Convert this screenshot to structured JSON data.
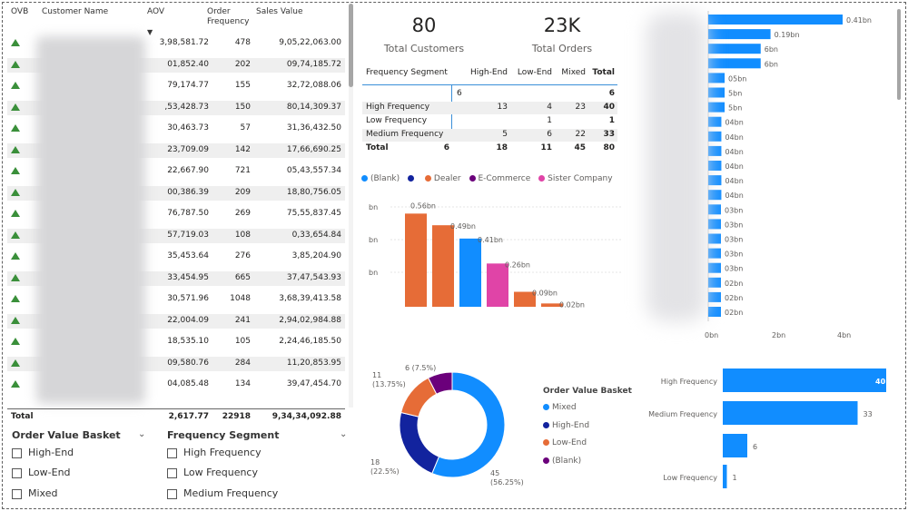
{
  "table": {
    "headers": {
      "ovb": "OVB",
      "customer": "Customer Name",
      "aov": "AOV",
      "freq_line1": "Order",
      "freq_line2": "Frequency",
      "sales": "Sales Value"
    },
    "rows": [
      {
        "aov": "3,98,581.72",
        "freq": "478",
        "sales": "9,05,22,063.00"
      },
      {
        "aov": "01,852.40",
        "freq": "202",
        "sales": "09,74,185.72"
      },
      {
        "aov": "79,174.77",
        "freq": "155",
        "sales": "32,72,088.06"
      },
      {
        "aov": ",53,428.73",
        "freq": "150",
        "sales": "80,14,309.37"
      },
      {
        "aov": "30,463.73",
        "freq": "57",
        "sales": "31,36,432.50"
      },
      {
        "aov": "23,709.09",
        "freq": "142",
        "sales": "17,66,690.25"
      },
      {
        "aov": "22,667.90",
        "freq": "721",
        "sales": "05,43,557.34"
      },
      {
        "aov": "00,386.39",
        "freq": "209",
        "sales": "18,80,756.05"
      },
      {
        "aov": "76,787.50",
        "freq": "269",
        "sales": "75,55,837.45"
      },
      {
        "aov": "57,719.03",
        "freq": "108",
        "sales": "0,33,654.84"
      },
      {
        "aov": "35,453.64",
        "freq": "276",
        "sales": "3,85,204.90"
      },
      {
        "aov": "33,454.95",
        "freq": "665",
        "sales": "37,47,543.93"
      },
      {
        "aov": "30,571.96",
        "freq": "1048",
        "sales": "3,68,39,413.58"
      },
      {
        "aov": "22,004.09",
        "freq": "241",
        "sales": "2,94,02,984.88"
      },
      {
        "aov": "18,535.10",
        "freq": "105",
        "sales": "2,24,46,185.50"
      },
      {
        "aov": "09,580.76",
        "freq": "284",
        "sales": "11,20,853.95"
      },
      {
        "aov": "04,085.48",
        "freq": "134",
        "sales": "39,47,454.70"
      }
    ],
    "total": {
      "label": "Total",
      "aov": "2,617.77",
      "freq": "22918",
      "sales": "9,34,34,092.88"
    }
  },
  "slicers": {
    "order_value_basket": {
      "title": "Order Value Basket",
      "items": [
        "High-End",
        "Low-End",
        "Mixed"
      ]
    },
    "frequency_segment": {
      "title": "Frequency Segment",
      "items": [
        "High Frequency",
        "Low Frequency",
        "Medium Frequency"
      ]
    }
  },
  "kpis": {
    "customers": {
      "value": "80",
      "label": "Total Customers"
    },
    "orders": {
      "value": "23K",
      "label": "Total Orders"
    }
  },
  "matrix": {
    "headers": [
      "Frequency Segment",
      "High-End",
      "Low-End",
      "Mixed",
      "Total"
    ],
    "rows": [
      {
        "label": "",
        "vals": [
          "6",
          "",
          "",
          "6"
        ]
      },
      {
        "label": "High Frequency",
        "vals": [
          "13",
          "4",
          "23",
          "40"
        ]
      },
      {
        "label": "Low Frequency",
        "vals": [
          "",
          "1",
          "",
          "1"
        ]
      },
      {
        "label": "Medium Frequency",
        "vals": [
          "5",
          "6",
          "22",
          "33"
        ]
      },
      {
        "label": "Total",
        "vals": [
          "6",
          "18",
          "11",
          "45",
          "80"
        ]
      }
    ]
  },
  "colors": {
    "blank": "#118dff",
    "dealer": "#12239e",
    "ecommerce": "#e66c37",
    "sister": "#6b007b",
    "pink": "#e044a7",
    "bar": "#118dff"
  },
  "chart_data": [
    {
      "type": "bar",
      "legend": [
        "(Blank)",
        "Dealer",
        "E-Commerce",
        "Sister Company"
      ],
      "legend_colors": [
        "#118dff",
        "#12239e",
        "#6b007b",
        "#e044a7"
      ],
      "data_labels": [
        "0.56bn",
        "0.49bn",
        "0.41bn",
        "0.26bn",
        "0.09bn",
        "0.02bn"
      ],
      "values": [
        0.56,
        0.49,
        0.41,
        0.26,
        0.09,
        0.02
      ],
      "bar_colors": [
        "#e66c37",
        "#e66c37",
        "#118dff",
        "#e044a7",
        "#e66c37",
        "#e66c37"
      ],
      "y_ticks": [
        "bn",
        "bn",
        "bn"
      ]
    },
    {
      "type": "bar",
      "orientation": "horizontal",
      "data_labels": [
        "0.41bn",
        "0.19bn",
        "6bn",
        "6bn",
        "05bn",
        "5bn",
        "5bn",
        "04bn",
        "04bn",
        "04bn",
        "04bn",
        "04bn",
        "04bn",
        "03bn",
        "03bn",
        "03bn",
        "03bn",
        "03bn",
        "02bn",
        "02bn",
        "02bn"
      ],
      "values": [
        0.41,
        0.19,
        0.16,
        0.16,
        0.05,
        0.05,
        0.05,
        0.04,
        0.04,
        0.04,
        0.04,
        0.04,
        0.04,
        0.03,
        0.03,
        0.03,
        0.03,
        0.03,
        0.02,
        0.02,
        0.02
      ],
      "x_ticks": [
        "0bn",
        "2bn",
        "4bn"
      ]
    },
    {
      "type": "pie",
      "title": "Order Value Basket",
      "categories": [
        "Mixed",
        "High-End",
        "Low-End",
        "(Blank)"
      ],
      "values": [
        45,
        18,
        11,
        6
      ],
      "labels": [
        "45\n(56.25%)",
        "18\n(22.5%)",
        "11\n(13.75%)",
        "6 (7.5%)"
      ],
      "colors": [
        "#118dff",
        "#12239e",
        "#e66c37",
        "#6b007b"
      ]
    },
    {
      "type": "bar",
      "orientation": "horizontal",
      "categories": [
        "High Frequency",
        "Medium Frequency",
        "",
        "Low Frequency"
      ],
      "values": [
        40,
        33,
        6,
        1
      ]
    }
  ]
}
